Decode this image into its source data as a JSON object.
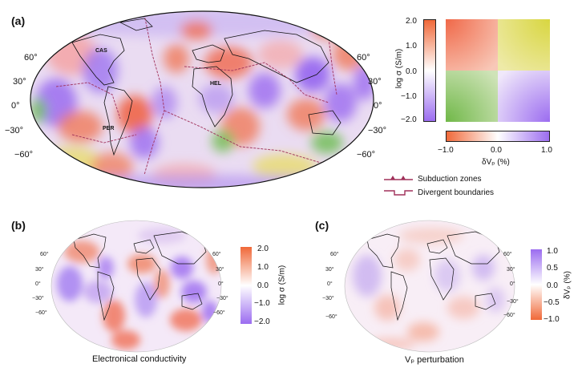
{
  "panels": {
    "a": {
      "label": "(a)",
      "lat_left": [
        "60°",
        "30°",
        "0°",
        "−30°",
        "−60°"
      ],
      "lat_right": [
        "60°",
        "30°",
        "0°",
        "−30°",
        "−60°"
      ],
      "locations": [
        "CAS",
        "HEL",
        "PER"
      ],
      "colorbar_y": {
        "ticks": [
          "2.0",
          "1.0",
          "0.0",
          "−1.0",
          "−2.0"
        ],
        "label": "log σ (S/m)"
      },
      "colorbar_x": {
        "ticks": [
          "−1.0",
          "0.0",
          "1.0"
        ],
        "label": "δVₚ (%)"
      },
      "legend": [
        "Subduction zones",
        "Divergent boundaries"
      ]
    },
    "b": {
      "label": "(b)",
      "lat_left": [
        "60°",
        "30°",
        "0°",
        "−30°",
        "−60°"
      ],
      "lat_right": [
        "60°",
        "30°",
        "0°",
        "−30°",
        "−60°"
      ],
      "colorbar": {
        "ticks": [
          "2.0",
          "1.0",
          "0.0",
          "−1.0",
          "−2.0"
        ],
        "label": "log σ (S/m)"
      },
      "caption": "Electronical conductivity"
    },
    "c": {
      "label": "(c)",
      "lat_left": [
        "60°",
        "30°",
        "0°",
        "−30°",
        "−60°"
      ],
      "lat_right": [
        "60°",
        "30°",
        "0°",
        "−30°",
        "−60°"
      ],
      "colorbar": {
        "ticks": [
          "1.0",
          "0.5",
          "0.0",
          "−0.5",
          "−1.0"
        ],
        "label": "δVₚ (%)"
      },
      "caption": "Vₚ perturbation"
    }
  },
  "colors": {
    "conductive_red": "#f0704f",
    "resistive_purple": "#9b6cf0",
    "yellow": "#e8e060",
    "green": "#7cc060",
    "boundary": "#a0305a"
  }
}
